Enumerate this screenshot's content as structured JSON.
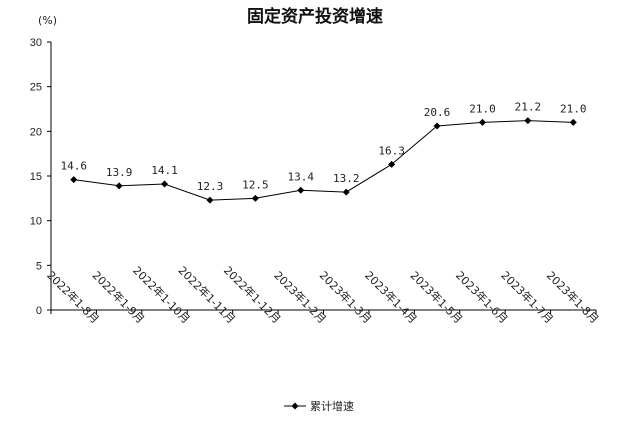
{
  "chart_data": {
    "type": "line",
    "title": "固定资产投资增速",
    "unit": "(%)",
    "categories": [
      "2022年1-8月",
      "2022年1-9月",
      "2022年1-10月",
      "2022年1-11月",
      "2022年1-12月",
      "2023年1-2月",
      "2023年1-3月",
      "2023年1-4月",
      "2023年1-5月",
      "2023年1-6月",
      "2023年1-7月",
      "2023年1-8月"
    ],
    "series": [
      {
        "name": "累计增速",
        "values": [
          14.6,
          13.9,
          14.1,
          12.3,
          12.5,
          13.4,
          13.2,
          16.3,
          20.6,
          21.0,
          21.2,
          21.0
        ],
        "labels": [
          "14.6",
          "13.9",
          "14.1",
          "12.3",
          "12.5",
          "13.4",
          "13.2",
          "16.3",
          "20.6",
          "21.0",
          "21.2",
          "21.0"
        ]
      }
    ],
    "yticks": [
      "0",
      "5",
      "10",
      "15",
      "20",
      "25",
      "30"
    ],
    "ylim": [
      0,
      30
    ],
    "grid": false,
    "legend_position": "bottom",
    "colors": {
      "line": "#000000",
      "axis": "#000000"
    }
  }
}
